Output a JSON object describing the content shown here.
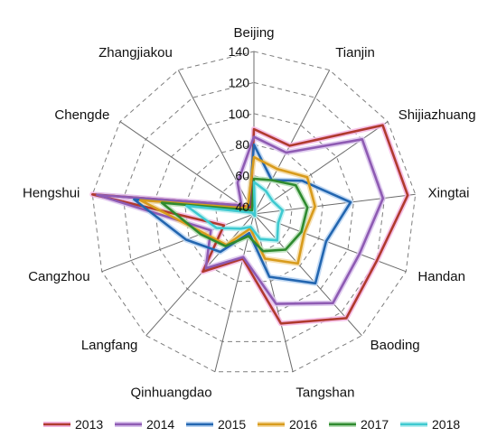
{
  "chart_data": {
    "type": "radar",
    "categories": [
      "Beijing",
      "Tianjin",
      "Shijiazhuang",
      "Xingtai",
      "Handan",
      "Baoding",
      "Tangshan",
      "Qinhuangdao",
      "Langfang",
      "Cangzhou",
      "Hengshui",
      "Chengde",
      "Zhangjiakou"
    ],
    "r_min": 40,
    "r_max": 140,
    "ticks": [
      40,
      60,
      80,
      100,
      120,
      140
    ],
    "tick_labels": [
      "40",
      "60",
      "80",
      "100",
      "120",
      "140"
    ],
    "grid": true,
    "legend_position": "bottom",
    "series": [
      {
        "name": "2013",
        "color": "#b03a2e",
        "glow": "#f4b6e3",
        "values": [
          90,
          85,
          136,
          135,
          120,
          125,
          108,
          65,
          85,
          56,
          140,
          45,
          40
        ]
      },
      {
        "name": "2014",
        "color": "#8e5bb3",
        "glow": "#d9c2ec",
        "values": [
          85,
          80,
          120,
          119,
          108,
          112,
          95,
          64,
          82,
          65,
          137,
          45,
          58
        ]
      },
      {
        "name": "2015",
        "color": "#2366b0",
        "glow": "#b9d3f2",
        "values": [
          80,
          60,
          73,
          98,
          85,
          95,
          77,
          48,
          68,
          82,
          113,
          42,
          42
        ]
      },
      {
        "name": "2016",
        "color": "#d89b1c",
        "glow": "#f4dba6",
        "values": [
          72,
          68,
          77,
          75,
          70,
          78,
          65,
          45,
          62,
          70,
          109,
          42,
          43
        ]
      },
      {
        "name": "2017",
        "color": "#2f8a2f",
        "glow": "#b9dfb9",
        "values": [
          58,
          60,
          68,
          70,
          68,
          66,
          60,
          50,
          63,
          72,
          95,
          40,
          38
        ]
      },
      {
        "name": "2018",
        "color": "#3ec9d0",
        "glow": "#b8eef0",
        "values": [
          56,
          52,
          50,
          54,
          52,
          58,
          52,
          44,
          48,
          61,
          79,
          37,
          34
        ]
      }
    ]
  }
}
